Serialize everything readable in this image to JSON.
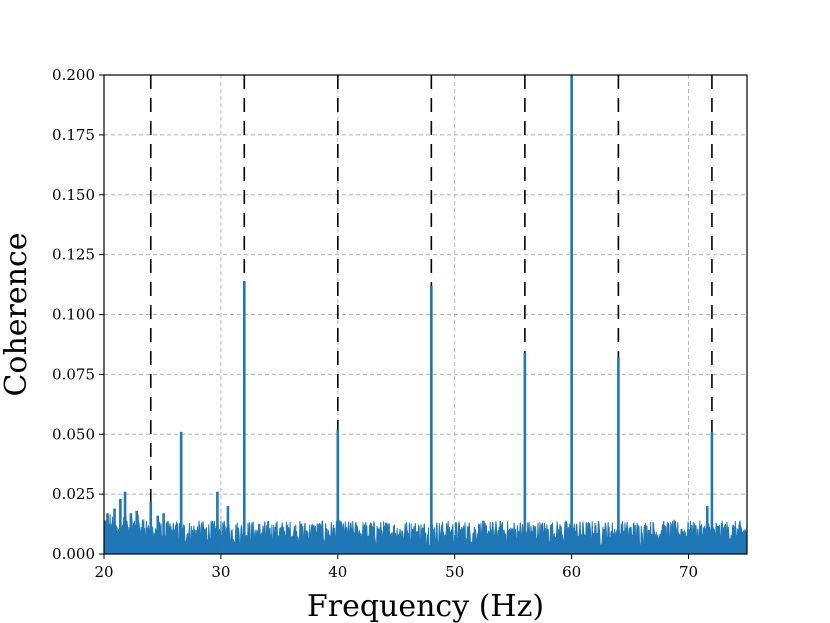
{
  "chart_data": {
    "type": "line",
    "xlabel": "Frequency (Hz)",
    "ylabel": "Coherence",
    "xlim": [
      20,
      75
    ],
    "ylim": [
      0.0,
      0.2
    ],
    "x_ticks": [
      20,
      30,
      40,
      50,
      60,
      70
    ],
    "x_tick_labels": [
      "20",
      "30",
      "40",
      "50",
      "60",
      "70"
    ],
    "y_ticks": [
      0.0,
      0.025,
      0.05,
      0.075,
      0.1,
      0.125,
      0.15,
      0.175,
      0.2
    ],
    "y_tick_labels": [
      "0.000",
      "0.025",
      "0.050",
      "0.075",
      "0.100",
      "0.125",
      "0.150",
      "0.175",
      "0.200"
    ],
    "grid": true,
    "series_color": "#1f77b4",
    "reference_lines": {
      "style": "dashed",
      "color": "#000000",
      "x": [
        24,
        32,
        40,
        48,
        56,
        64,
        72
      ]
    },
    "baseline_range": [
      0.003,
      0.014
    ],
    "peaks": [
      {
        "x": 20.3,
        "y": 0.017
      },
      {
        "x": 20.9,
        "y": 0.019
      },
      {
        "x": 21.4,
        "y": 0.023
      },
      {
        "x": 21.8,
        "y": 0.026
      },
      {
        "x": 22.3,
        "y": 0.017
      },
      {
        "x": 22.8,
        "y": 0.018
      },
      {
        "x": 24.0,
        "y": 0.022
      },
      {
        "x": 24.6,
        "y": 0.016
      },
      {
        "x": 25.1,
        "y": 0.017
      },
      {
        "x": 26.6,
        "y": 0.051
      },
      {
        "x": 29.7,
        "y": 0.026
      },
      {
        "x": 30.6,
        "y": 0.02
      },
      {
        "x": 32.0,
        "y": 0.114
      },
      {
        "x": 40.0,
        "y": 0.052
      },
      {
        "x": 48.0,
        "y": 0.112
      },
      {
        "x": 56.0,
        "y": 0.084
      },
      {
        "x": 60.0,
        "y": 0.2
      },
      {
        "x": 64.0,
        "y": 0.082
      },
      {
        "x": 71.6,
        "y": 0.02
      },
      {
        "x": 72.0,
        "y": 0.051
      }
    ]
  }
}
